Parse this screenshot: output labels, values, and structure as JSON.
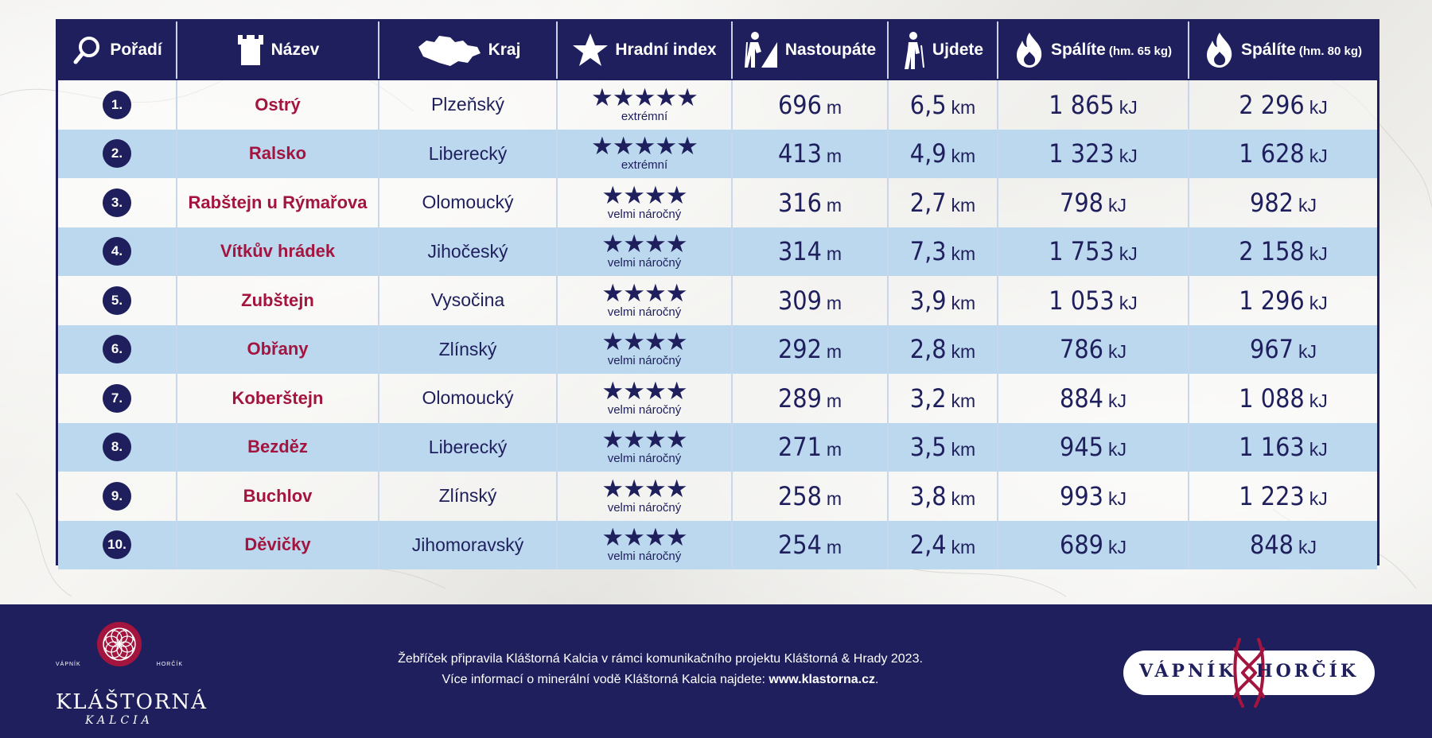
{
  "header": {
    "cols": [
      {
        "label": "Pořadí",
        "icon": "search-icon"
      },
      {
        "label": "Název",
        "icon": "castle-tower-icon"
      },
      {
        "label": "Kraj",
        "icon": "czech-map-icon"
      },
      {
        "label": "Hradní index",
        "icon": "star-icon"
      },
      {
        "label": "Nastoupáte",
        "icon": "hiker-climb-icon"
      },
      {
        "label": "Ujdete",
        "icon": "hiker-icon"
      },
      {
        "label": "Spálíte",
        "note": "(hm. 65 kg)",
        "icon": "flame-icon"
      },
      {
        "label": "Spálíte",
        "note": "(hm. 80 kg)",
        "icon": "flame-icon"
      }
    ]
  },
  "rows": [
    {
      "rank": "1.",
      "name": "Ostrý",
      "region": "Plzeňský",
      "stars": "★★★★★",
      "level": "extrémní",
      "ascent": "696",
      "distance": "6,5",
      "kj65": "1 865",
      "kj80": "2 296"
    },
    {
      "rank": "2.",
      "name": "Ralsko",
      "region": "Liberecký",
      "stars": "★★★★★",
      "level": "extrémní",
      "ascent": "413",
      "distance": "4,9",
      "kj65": "1 323",
      "kj80": "1 628"
    },
    {
      "rank": "3.",
      "name": "Rabštejn u Rýmařova",
      "region": "Olomoucký",
      "stars": "★★★★",
      "level": "velmi náročný",
      "ascent": "316",
      "distance": "2,7",
      "kj65": "798",
      "kj80": "982"
    },
    {
      "rank": "4.",
      "name": "Vítkův hrádek",
      "region": "Jihočeský",
      "stars": "★★★★",
      "level": "velmi náročný",
      "ascent": "314",
      "distance": "7,3",
      "kj65": "1 753",
      "kj80": "2 158"
    },
    {
      "rank": "5.",
      "name": "Zubštejn",
      "region": "Vysočina",
      "stars": "★★★★",
      "level": "velmi náročný",
      "ascent": "309",
      "distance": "3,9",
      "kj65": "1 053",
      "kj80": "1 296"
    },
    {
      "rank": "6.",
      "name": "Obřany",
      "region": "Zlínský",
      "stars": "★★★★",
      "level": "velmi náročný",
      "ascent": "292",
      "distance": "2,8",
      "kj65": "786",
      "kj80": "967"
    },
    {
      "rank": "7.",
      "name": "Koberštejn",
      "region": "Olomoucký",
      "stars": "★★★★",
      "level": "velmi náročný",
      "ascent": "289",
      "distance": "3,2",
      "kj65": "884",
      "kj80": "1 088"
    },
    {
      "rank": "8.",
      "name": "Bezděz",
      "region": "Liberecký",
      "stars": "★★★★",
      "level": "velmi náročný",
      "ascent": "271",
      "distance": "3,5",
      "kj65": "945",
      "kj80": "1 163"
    },
    {
      "rank": "9.",
      "name": "Buchlov",
      "region": "Zlínský",
      "stars": "★★★★",
      "level": "velmi náročný",
      "ascent": "258",
      "distance": "3,8",
      "kj65": "993",
      "kj80": "1 223"
    },
    {
      "rank": "10.",
      "name": "Děvičky",
      "region": "Jihomoravský",
      "stars": "★★★★",
      "level": "velmi náročný",
      "ascent": "254",
      "distance": "2,4",
      "kj65": "689",
      "kj80": "848"
    }
  ],
  "units": {
    "ascent": "m",
    "distance": "km",
    "energy": "kJ"
  },
  "footer": {
    "brand_name": "KLÁŠTORNÁ",
    "brand_sub": "KALCIA",
    "mini_left": "VÁPNÍK",
    "mini_right": "HORČÍK",
    "credit_line1": "Žebříček připravila Kláštorná Kalcia v rámci komunikačního projektu Kláštorná & Hrady 2023.",
    "credit_line2_text": "Více informací o minerální vodě Kláštorná Kalcia najdete: ",
    "credit_link": "www.klastorna.cz",
    "credit_end": ".",
    "badge_left": "VÁPNÍK",
    "badge_right": "HORČÍK"
  },
  "colors": {
    "navy": "#1e1f5c",
    "crimson": "#a3153f",
    "light_blue": "#bcd8ef"
  }
}
